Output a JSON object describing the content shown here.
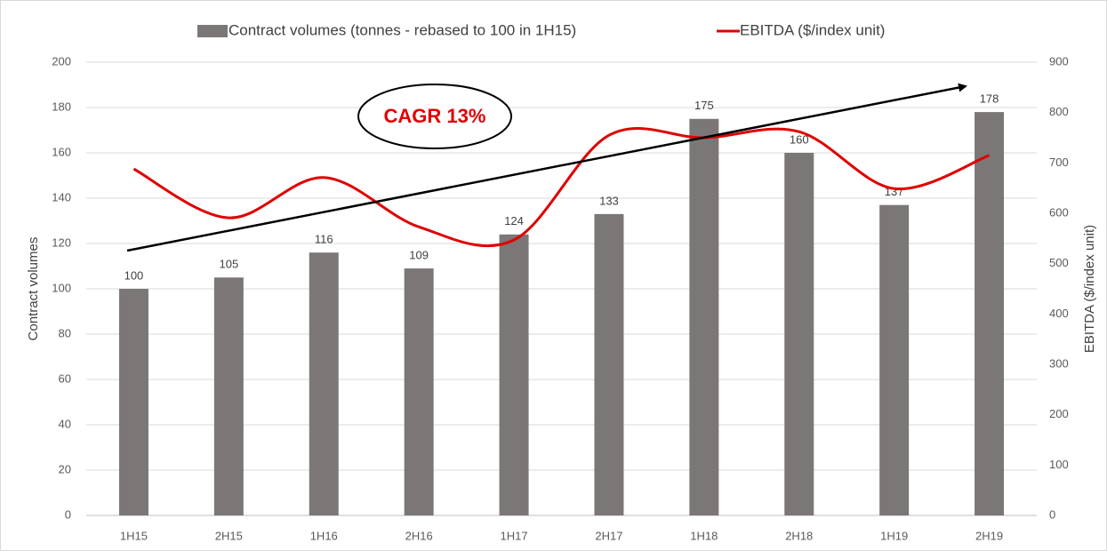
{
  "chart_data": {
    "type": "bar",
    "categories": [
      "1H15",
      "2H15",
      "1H16",
      "2H16",
      "1H17",
      "2H17",
      "1H18",
      "2H18",
      "1H19",
      "2H19"
    ],
    "series": [
      {
        "name": "Contract volumes (tonnes - rebased to 100 in 1H15)",
        "type": "bar",
        "color": "#7b7777",
        "values": [
          100,
          105,
          116,
          109,
          124,
          133,
          175,
          160,
          137,
          178
        ]
      },
      {
        "name": "EBITDA ($/index unit)",
        "type": "line",
        "axis": "y2",
        "color": "#e00000",
        "values": [
          688,
          591,
          671,
          573,
          547,
          755,
          750,
          762,
          649,
          715
        ]
      }
    ],
    "ylabel": "Contract volumes",
    "y2label": "EBITDA ($/index unit)",
    "ylim": [
      0,
      200
    ],
    "yticks": [
      0,
      20,
      40,
      60,
      80,
      100,
      120,
      140,
      160,
      180,
      200
    ],
    "y2lim": [
      0,
      900
    ],
    "y2ticks": [
      0,
      100,
      200,
      300,
      400,
      500,
      600,
      700,
      800,
      900
    ],
    "annotation": "CAGR 13%",
    "grid": true,
    "legend": "top"
  }
}
